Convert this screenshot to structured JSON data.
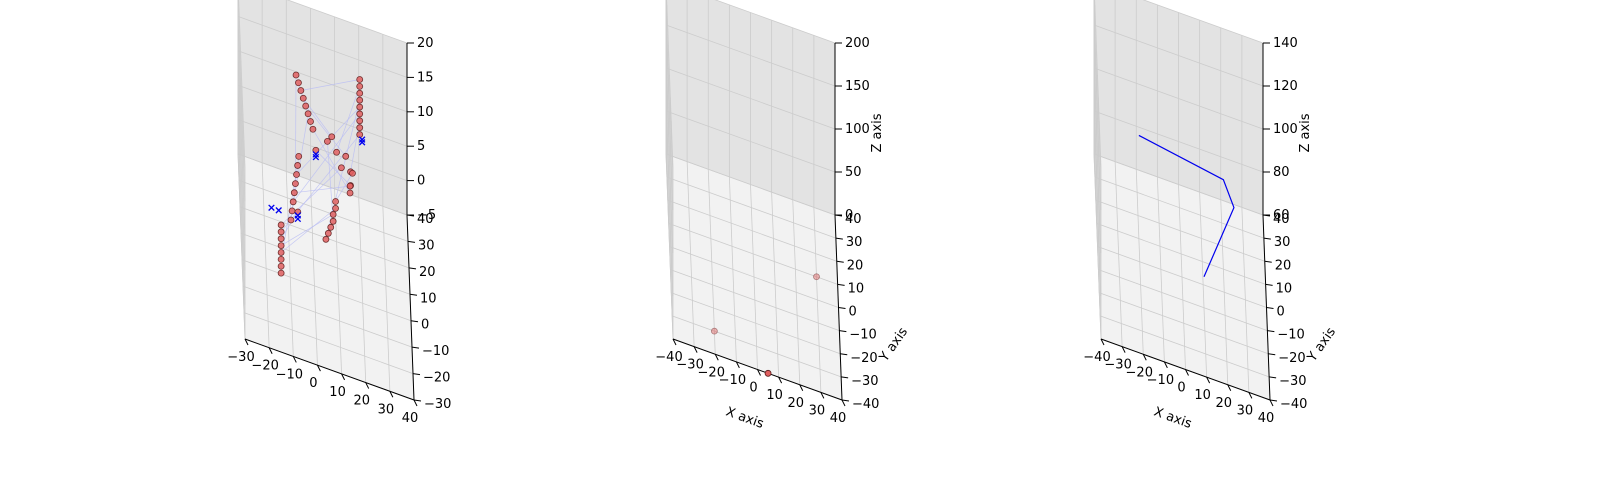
{
  "colors": {
    "pane_left": "#ebebeb",
    "pane_right": "#e3e3e3",
    "pane_floor": "#f2f2f2",
    "grid": "#cccccc",
    "marker_fill": "#e06060",
    "marker_edge": "#5a1a1a",
    "x_marker": "#0000ee",
    "line": "#0000ee",
    "mesh": "#b8bcf4"
  },
  "chart_data": [
    {
      "type": "scatter",
      "title": "",
      "xlabel": "",
      "ylabel": "",
      "zlabel": "",
      "xlim": [
        -30,
        40
      ],
      "ylim": [
        -30,
        40
      ],
      "zlim": [
        -5,
        20
      ],
      "xticks": [
        "−30",
        "−20",
        "−10",
        "0",
        "10",
        "20",
        "30",
        "40"
      ],
      "yticks": [
        "−30",
        "−20",
        "−10",
        "0",
        "10",
        "20",
        "30",
        "40"
      ],
      "zticks": [
        "−5",
        "0",
        "5",
        "10",
        "15",
        "20"
      ],
      "grid": true,
      "series": [
        {
          "marker": "circle",
          "points": [
            [
              -7,
              15,
              19
            ],
            [
              -6,
              15,
              18
            ],
            [
              -5,
              15,
              17
            ],
            [
              -4,
              15,
              16
            ],
            [
              -3,
              15,
              15
            ],
            [
              -2,
              15,
              14
            ],
            [
              -1,
              15,
              13
            ],
            [
              0,
              15,
              12
            ],
            [
              -6.5,
              0,
              13
            ],
            [
              -7,
              -1,
              12
            ],
            [
              -7.5,
              -2,
              11
            ],
            [
              -8,
              -3,
              10
            ],
            [
              -8.5,
              -4,
              9
            ],
            [
              -9,
              -5,
              8
            ],
            [
              -9.5,
              -6,
              7
            ],
            [
              -10,
              -7,
              6
            ],
            [
              -7,
              -3,
              6
            ],
            [
              -14,
              -5,
              4
            ],
            [
              -14,
              -5,
              3
            ],
            [
              -14,
              -5,
              2
            ],
            [
              -14,
              -5,
              1
            ],
            [
              -14,
              -5,
              0
            ],
            [
              -14,
              -5,
              -1
            ],
            [
              -14,
              -5,
              -2
            ],
            [
              -14,
              -5,
              -3
            ],
            [
              20,
              30,
              16
            ],
            [
              20,
              30,
              15
            ],
            [
              20,
              30,
              14
            ],
            [
              20,
              30,
              13
            ],
            [
              20,
              30,
              12
            ],
            [
              20,
              30,
              11
            ],
            [
              20,
              30,
              10
            ],
            [
              20,
              30,
              9
            ],
            [
              20,
              30,
              8
            ],
            [
              1,
              10,
              11
            ],
            [
              6,
              15,
              11
            ],
            [
              8,
              20,
              10
            ],
            [
              10,
              20,
              8
            ],
            [
              12,
              20,
              6
            ],
            [
              14,
              25,
              6
            ],
            [
              16,
              25,
              4
            ],
            [
              16,
              25,
              2
            ],
            [
              17,
              30,
              2
            ],
            [
              16,
              30,
              0
            ],
            [
              16,
              30,
              -1
            ],
            [
              10,
              30,
              -3
            ],
            [
              10,
              30,
              -4
            ],
            [
              9,
              30,
              -5
            ],
            [
              9,
              30,
              -6
            ],
            [
              8,
              30,
              -7
            ],
            [
              7,
              30,
              -8
            ],
            [
              6,
              30,
              -9
            ]
          ]
        },
        {
          "marker": "x",
          "points": [
            [
              -18,
              -5,
              6
            ],
            [
              -15,
              -5,
              6
            ],
            [
              -7,
              -3,
              5
            ],
            [
              -7,
              -3,
              5.5
            ],
            [
              1,
              10,
              10
            ],
            [
              1,
              10,
              10.4
            ],
            [
              21,
              30,
              7
            ],
            [
              21,
              30,
              7.4
            ]
          ]
        }
      ]
    },
    {
      "type": "scatter",
      "title": "",
      "xlabel": "X axis",
      "ylabel": "Y axis",
      "zlabel": "Z axis",
      "xlim": [
        -40,
        40
      ],
      "ylim": [
        -40,
        40
      ],
      "zlim": [
        0,
        200
      ],
      "xticks": [
        "−40",
        "−30",
        "−20",
        "−10",
        "0",
        "10",
        "20",
        "30",
        "40"
      ],
      "yticks": [
        "−40",
        "−30",
        "−20",
        "−10",
        "0",
        "10",
        "20",
        "30",
        "40"
      ],
      "zticks": [
        "0",
        "50",
        "100",
        "150",
        "200"
      ],
      "grid": true,
      "series": [
        {
          "marker": "circle",
          "points": [
            [
              -20,
              -30,
              0
            ],
            [
              30,
              10,
              0
            ],
            [
              5,
              -40,
              0
            ]
          ],
          "alphas": [
            0.45,
            0.45,
            1
          ]
        }
      ]
    },
    {
      "type": "line",
      "title": "",
      "xlabel": "X axis",
      "ylabel": "Y axis",
      "zlabel": "Z axis",
      "xlim": [
        -40,
        40
      ],
      "ylim": [
        -40,
        40
      ],
      "zlim": [
        50,
        150
      ],
      "xticks": [
        "−40",
        "−30",
        "−20",
        "−10",
        "0",
        "10",
        "20",
        "30",
        "40"
      ],
      "yticks": [
        "−40",
        "−30",
        "−20",
        "−10",
        "0",
        "10",
        "20",
        "30",
        "40"
      ],
      "zticks": [
        "60",
        "80",
        "100",
        "120",
        "140"
      ],
      "grid": true,
      "series": [
        {
          "points": [
            [
              -20,
              10,
              110
            ],
            [
              20,
              10,
              102
            ],
            [
              25,
              10,
              88
            ],
            [
              10,
              -10,
              68
            ]
          ]
        }
      ]
    }
  ]
}
